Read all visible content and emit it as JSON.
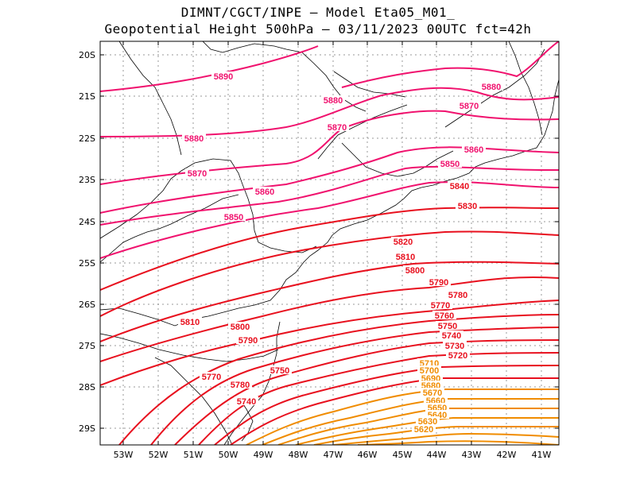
{
  "title_line1": "DIMNT/CGCT/INPE –  Model Eta05_M01_",
  "title_line2": "Geopotential Height 500hPa –  03/11/2023 00UTC fct=42h",
  "lat_ticks": [
    "20S",
    "21S",
    "22S",
    "23S",
    "24S",
    "25S",
    "26S",
    "27S",
    "28S",
    "29S"
  ],
  "lon_ticks": [
    "53W",
    "52W",
    "51W",
    "50W",
    "49W",
    "48W",
    "47W",
    "46W",
    "45W",
    "44W",
    "43W",
    "42W",
    "41W"
  ],
  "contour_labels": [
    {
      "id": "c5890",
      "text": "5890"
    },
    {
      "id": "c5880a",
      "text": "5880"
    },
    {
      "id": "c5880b",
      "text": "5880"
    },
    {
      "id": "c5880c",
      "text": "5880"
    },
    {
      "id": "c5870a",
      "text": "5870"
    },
    {
      "id": "c5870b",
      "text": "5870"
    },
    {
      "id": "c5870c",
      "text": "5870"
    },
    {
      "id": "c5860a",
      "text": "5860"
    },
    {
      "id": "c5860b",
      "text": "5860"
    },
    {
      "id": "c5850a",
      "text": "5850"
    },
    {
      "id": "c5850b",
      "text": "5850"
    },
    {
      "id": "c5840",
      "text": "5840"
    },
    {
      "id": "c5830",
      "text": "5830"
    },
    {
      "id": "c5820",
      "text": "5820"
    },
    {
      "id": "c5810a",
      "text": "5810"
    },
    {
      "id": "c5810b",
      "text": "5810"
    },
    {
      "id": "c5800a",
      "text": "5800"
    },
    {
      "id": "c5800b",
      "text": "5800"
    },
    {
      "id": "c5790a",
      "text": "5790"
    },
    {
      "id": "c5790b",
      "text": "5790"
    },
    {
      "id": "c5780a",
      "text": "5780"
    },
    {
      "id": "c5780b",
      "text": "5780"
    },
    {
      "id": "c5770a",
      "text": "5770"
    },
    {
      "id": "c5770b",
      "text": "5770"
    },
    {
      "id": "c5760",
      "text": "5760"
    },
    {
      "id": "c5750a",
      "text": "5750"
    },
    {
      "id": "c5750b",
      "text": "5750"
    },
    {
      "id": "c5740a",
      "text": "5740"
    },
    {
      "id": "c5740b",
      "text": "5740"
    },
    {
      "id": "c5730",
      "text": "5730"
    },
    {
      "id": "c5720",
      "text": "5720"
    },
    {
      "id": "c5710",
      "text": "5710"
    },
    {
      "id": "c5700",
      "text": "5700"
    },
    {
      "id": "c5690",
      "text": "5690"
    },
    {
      "id": "c5680",
      "text": "5680"
    },
    {
      "id": "c5670",
      "text": "5670"
    },
    {
      "id": "c5660",
      "text": "5660"
    },
    {
      "id": "c5650",
      "text": "5650"
    },
    {
      "id": "c5640",
      "text": "5640"
    },
    {
      "id": "c5630",
      "text": "5630"
    },
    {
      "id": "c5620",
      "text": "5620"
    }
  ],
  "colors": {
    "high": "#f0126e",
    "mid": "#e8101e",
    "low": "#f08c00",
    "grid": "#999999",
    "coast": "#000000"
  }
}
